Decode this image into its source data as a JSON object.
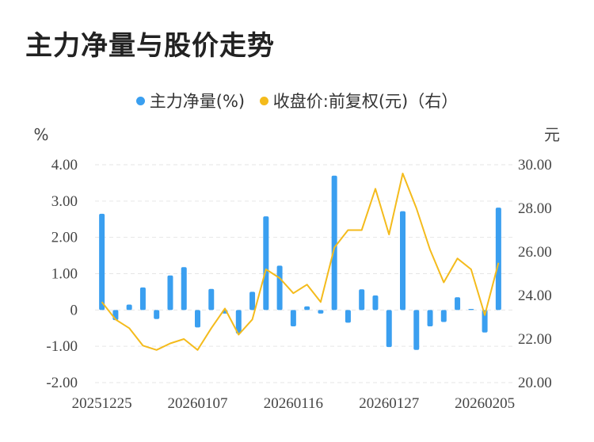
{
  "title": "主力净量与股价走势",
  "colors": {
    "bar": "#3a9ff0",
    "line": "#f4bb1c",
    "grid": "#e6e6e6"
  },
  "legend": [
    {
      "label": "主力净量(%)",
      "color": "#3a9ff0"
    },
    {
      "label": "收盘价:前复权(元)（右）",
      "color": "#f4bb1c"
    }
  ],
  "chart_data": {
    "type": "bar",
    "left_unit": "%",
    "right_unit": "元",
    "ylim_left": [
      -2,
      4
    ],
    "ylim_right": [
      20,
      30
    ],
    "left_ticks": [
      "4.00",
      "3.00",
      "2.00",
      "1.00",
      "0",
      "-1.00",
      "-2.00"
    ],
    "right_ticks": [
      "30.00",
      "28.00",
      "26.00",
      "24.00",
      "22.00",
      "20.00"
    ],
    "x_tick_labels": [
      "20251225",
      "20260107",
      "20260116",
      "20260127",
      "20260205"
    ],
    "x_tick_indices": [
      0,
      7,
      14,
      21,
      28
    ],
    "series": [
      {
        "name": "主力净量(%)",
        "kind": "bar",
        "values": [
          2.65,
          -0.28,
          0.15,
          0.62,
          -0.25,
          0.95,
          1.18,
          -0.48,
          0.58,
          -0.1,
          -0.65,
          0.5,
          2.58,
          1.22,
          -0.45,
          0.1,
          -0.1,
          3.7,
          -0.35,
          0.57,
          0.4,
          -1.02,
          2.72,
          -1.1,
          -0.45,
          -0.33,
          0.35,
          0.03,
          -0.62,
          2.82
        ]
      },
      {
        "name": "收盘价:前复权(元)（右）",
        "kind": "line",
        "values": [
          23.7,
          22.9,
          22.5,
          21.7,
          21.5,
          21.8,
          22.0,
          21.5,
          22.5,
          23.4,
          22.2,
          22.9,
          25.2,
          24.8,
          24.1,
          24.5,
          23.7,
          26.2,
          27.0,
          27.0,
          28.9,
          26.8,
          29.6,
          28.0,
          26.1,
          24.6,
          25.7,
          25.2,
          23.1,
          25.5
        ]
      }
    ]
  }
}
